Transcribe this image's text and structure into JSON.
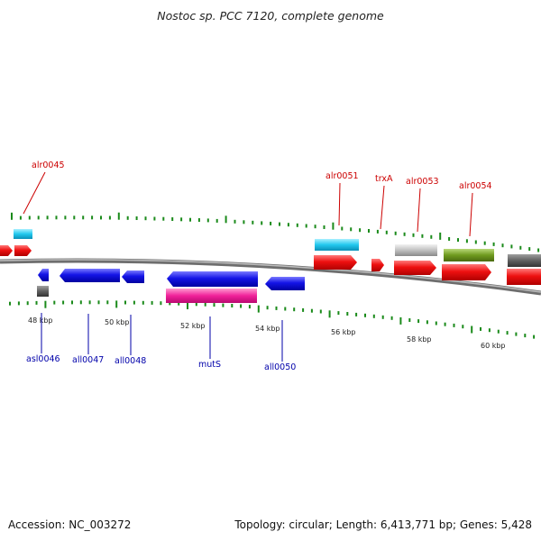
{
  "title": "Nostoc sp. PCC 7120, complete genome",
  "footer": {
    "accession": "Accession: NC_003272",
    "summary": "Topology: circular; Length: 6,413,771 bp; Genes: 5,428"
  },
  "scale_labels": [
    "48 kbp",
    "50 kbp",
    "52 kbp",
    "54 kbp",
    "56 kbp",
    "58 kbp",
    "60 kbp"
  ],
  "genes_top": [
    {
      "label": "alr0045",
      "color": "#cc0000"
    },
    {
      "label": "alr0051",
      "color": "#cc0000"
    },
    {
      "label": "trxA",
      "color": "#cc0000"
    },
    {
      "label": "alr0053",
      "color": "#cc0000"
    },
    {
      "label": "alr0054",
      "color": "#cc0000"
    }
  ],
  "genes_bottom": [
    {
      "label": "asl0046",
      "color": "#0000aa"
    },
    {
      "label": "all0047",
      "color": "#0000aa"
    },
    {
      "label": "all0048",
      "color": "#0000aa"
    },
    {
      "label": "mutS",
      "color": "#0000aa"
    },
    {
      "label": "all0050",
      "color": "#0000aa"
    }
  ],
  "colors": {
    "forward_cds": "#e81010",
    "reverse_cds": "#1414e0",
    "cyan_feature": "#22c8ee",
    "magenta_feature": "#f0209a",
    "olive_feature": "#6f9a1e",
    "gray_feature": "#bbbbbb",
    "dark_gray_feature": "#606060",
    "tick": "#1a8a1a",
    "backbone": "#7a7a7a"
  }
}
